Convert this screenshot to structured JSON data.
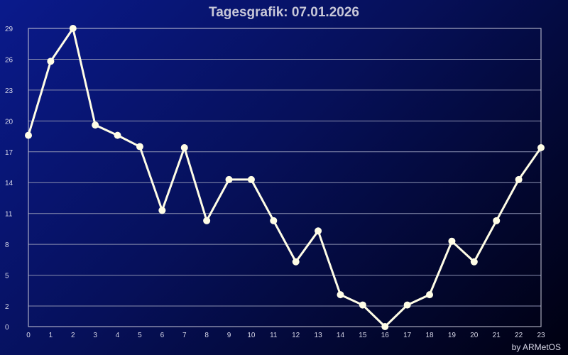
{
  "chart_data": {
    "type": "line",
    "title": "Tagesgrafik: 07.01.2026",
    "xlabel": "",
    "ylabel": "",
    "x": [
      0,
      1,
      2,
      3,
      4,
      5,
      6,
      7,
      8,
      9,
      10,
      11,
      12,
      13,
      14,
      15,
      16,
      17,
      18,
      19,
      20,
      21,
      22,
      23
    ],
    "series": [
      {
        "values": [
          18.6,
          25.8,
          29.0,
          19.6,
          18.6,
          17.5,
          11.3,
          17.4,
          10.3,
          14.3,
          14.3,
          10.3,
          6.3,
          9.3,
          3.1,
          2.1,
          0.0,
          2.1,
          3.1,
          8.3,
          6.3,
          10.3,
          14.3,
          17.4
        ]
      }
    ],
    "xlim": [
      0,
      23
    ],
    "ylim": [
      0,
      29
    ],
    "yticks": [
      "0",
      "2",
      "5",
      "8",
      "11",
      "14",
      "17",
      "20",
      "23",
      "26",
      "29"
    ],
    "xticks": [
      "0",
      "1",
      "2",
      "3",
      "4",
      "5",
      "6",
      "7",
      "8",
      "9",
      "10",
      "11",
      "12",
      "13",
      "14",
      "15",
      "16",
      "17",
      "18",
      "19",
      "20",
      "21",
      "22",
      "23"
    ],
    "grid": true,
    "line_color": "#fffde6",
    "grid_color": "#8a8fb0"
  },
  "credit": "by ARMetOS"
}
